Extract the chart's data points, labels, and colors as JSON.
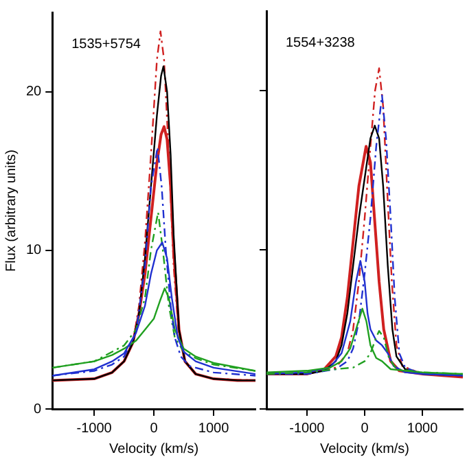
{
  "chart_data": [
    {
      "type": "line",
      "annotations": [
        "1535+5754"
      ],
      "xlabel": "Velocity (km/s)",
      "ylabel": "Flux (arbitrary units)",
      "xlim": [
        -1700,
        1700
      ],
      "xticks": [
        -1000,
        0,
        1000
      ],
      "ylim": [
        0,
        25
      ],
      "yticks": [
        0,
        10,
        20
      ],
      "grid": false,
      "legend": false,
      "marker": "none",
      "series": [
        {
          "color": "#2030d0",
          "line_style": "solid",
          "x": [
            -1700,
            -1000,
            -700,
            -500,
            -300,
            -150,
            -50,
            50,
            140,
            220,
            300,
            400,
            500,
            700,
            1000,
            1700
          ],
          "values": [
            2.1,
            2.5,
            3.0,
            3.5,
            4.8,
            6.5,
            8.5,
            10,
            10.5,
            9.5,
            7,
            4.5,
            3.6,
            3.0,
            2.6,
            2.2
          ]
        },
        {
          "color": "#2030d0",
          "line_style": "dashed",
          "x": [
            -1700,
            -1000,
            -700,
            -500,
            -300,
            -150,
            -50,
            60,
            130,
            200,
            280,
            350,
            450,
            600,
            1000,
            1700
          ],
          "values": [
            2.1,
            2.4,
            2.8,
            3.3,
            4.8,
            9,
            14,
            16.5,
            14,
            10,
            6.5,
            4.5,
            3.3,
            2.7,
            2.3,
            2.1
          ]
        },
        {
          "color": "#20a020",
          "line_style": "solid",
          "x": [
            -1700,
            -1000,
            -700,
            -500,
            -300,
            -150,
            0,
            100,
            180,
            250,
            350,
            500,
            700,
            1000,
            1700
          ],
          "values": [
            2.6,
            3.0,
            3.4,
            3.8,
            4.3,
            5,
            5.7,
            6.8,
            7.6,
            7,
            5,
            3.8,
            3.3,
            2.9,
            2.4
          ]
        },
        {
          "color": "#20a020",
          "line_style": "dashed",
          "x": [
            -1700,
            -1000,
            -700,
            -500,
            -300,
            -150,
            -50,
            70,
            150,
            250,
            350,
            500,
            700,
            1000,
            1700
          ],
          "values": [
            2.6,
            3.0,
            3.6,
            4.0,
            5,
            7,
            10,
            12.4,
            10,
            6.5,
            4.5,
            3.6,
            3.2,
            2.8,
            2.4
          ]
        },
        {
          "color": "#000000",
          "line_style": "solid",
          "x": [
            -1700,
            -1000,
            -700,
            -500,
            -350,
            -250,
            -150,
            -50,
            50,
            120,
            160,
            220,
            280,
            330,
            420,
            520,
            700,
            1000,
            1400,
            1700
          ],
          "values": [
            1.8,
            1.9,
            2.3,
            3.0,
            4.2,
            6,
            9.5,
            14,
            18.5,
            21,
            21.6,
            20,
            16,
            11,
            5,
            3,
            2.2,
            1.9,
            1.8,
            1.8
          ]
        },
        {
          "color": "#d02020",
          "line_style": "solid",
          "x": [
            -1700,
            -1000,
            -700,
            -500,
            -350,
            -250,
            -150,
            -50,
            50,
            120,
            170,
            220,
            280,
            330,
            420,
            520,
            700,
            1000,
            1400,
            1700
          ],
          "values": [
            1.8,
            1.9,
            2.3,
            3.0,
            4.2,
            6,
            8.5,
            12,
            15.5,
            17.3,
            17.8,
            17,
            14,
            10,
            5,
            3,
            2.2,
            1.9,
            1.8,
            1.8
          ]
        },
        {
          "color": "#d02020",
          "line_style": "dashed",
          "x": [
            -1700,
            -1000,
            -700,
            -500,
            -350,
            -250,
            -150,
            -50,
            50,
            110,
            170,
            250,
            330,
            420,
            520,
            700,
            1000,
            1700
          ],
          "values": [
            1.8,
            1.9,
            2.3,
            3.0,
            4.2,
            6.5,
            10.5,
            16,
            22,
            23.8,
            22,
            16,
            9,
            4.5,
            3,
            2.2,
            1.9,
            1.8
          ]
        }
      ]
    },
    {
      "type": "line",
      "annotations": [
        "1554+3238"
      ],
      "xlabel": "Velocity (km/s)",
      "xlim": [
        -1700,
        1700
      ],
      "xticks": [
        -1000,
        0,
        1000
      ],
      "ylim": [
        0,
        25
      ],
      "yticks": [
        0,
        10,
        20
      ],
      "tick_labels": "x",
      "grid": false,
      "legend": false,
      "marker": "none",
      "series": [
        {
          "color": "#20a020",
          "line_style": "solid",
          "x": [
            -1700,
            -1000,
            -600,
            -400,
            -250,
            -150,
            -40,
            30,
            100,
            200,
            300,
            450,
            700,
            1000,
            1700
          ],
          "values": [
            2.3,
            2.4,
            2.6,
            3.0,
            3.8,
            5,
            6.3,
            5.5,
            4,
            3.2,
            3,
            2.5,
            2.4,
            2.3,
            2.2
          ]
        },
        {
          "color": "#20a020",
          "line_style": "dashed",
          "x": [
            -1700,
            -1000,
            -500,
            -200,
            -100,
            0,
            100,
            200,
            250,
            330,
            420,
            550,
            1000,
            1700
          ],
          "values": [
            2.2,
            2.3,
            2.5,
            2.6,
            2.8,
            3.0,
            3.5,
            4.5,
            4.9,
            4.5,
            3.2,
            2.5,
            2.3,
            2.2
          ]
        },
        {
          "color": "#2030d0",
          "line_style": "solid",
          "x": [
            -1700,
            -1000,
            -600,
            -400,
            -250,
            -150,
            -75,
            0,
            50,
            100,
            200,
            300,
            400,
            500,
            700,
            1000,
            1700
          ],
          "values": [
            2.2,
            2.3,
            2.6,
            3.5,
            5.5,
            8,
            9.3,
            8,
            6,
            5,
            4.3,
            4,
            3.5,
            2.7,
            2.3,
            2.2,
            2.1
          ]
        },
        {
          "color": "#2030d0",
          "line_style": "dashed",
          "x": [
            -1700,
            -1000,
            -500,
            -300,
            -200,
            -100,
            0,
            100,
            200,
            300,
            370,
            450,
            520,
            600,
            700,
            1000,
            1700
          ],
          "values": [
            2.2,
            2.2,
            2.5,
            3.0,
            3.8,
            5.5,
            8.5,
            12,
            16.5,
            19.7,
            17,
            12,
            7,
            3.5,
            2.6,
            2.2,
            2.1
          ]
        },
        {
          "color": "#000000",
          "line_style": "solid",
          "x": [
            -1700,
            -1000,
            -700,
            -500,
            -400,
            -300,
            -200,
            -100,
            0,
            100,
            175,
            250,
            320,
            400,
            480,
            550,
            700,
            1000,
            1700
          ],
          "values": [
            2.2,
            2.2,
            2.4,
            3.0,
            4,
            6,
            9,
            12,
            14.5,
            17,
            17.8,
            17,
            14,
            9,
            5,
            3.3,
            2.5,
            2.2,
            2.1
          ]
        },
        {
          "color": "#d02020",
          "line_style": "solid",
          "x": [
            -1700,
            -1000,
            -700,
            -500,
            -400,
            -300,
            -200,
            -100,
            25,
            100,
            170,
            250,
            330,
            450,
            600,
            1000,
            1700
          ],
          "values": [
            2.2,
            2.2,
            2.5,
            3.3,
            4.5,
            7,
            10.5,
            14,
            16.5,
            15.5,
            12,
            8,
            5,
            3,
            2.4,
            2.2,
            2.0
          ]
        },
        {
          "color": "#d02020",
          "line_style": "dashed",
          "x": [
            -1700,
            -1000,
            -500,
            -300,
            -200,
            -100,
            0,
            100,
            180,
            250,
            320,
            400,
            470,
            550,
            650,
            1000,
            1700
          ],
          "values": [
            2.2,
            2.2,
            2.6,
            3.5,
            5,
            8,
            12,
            16.5,
            20,
            21.4,
            19,
            13,
            8,
            4,
            2.7,
            2.2,
            2.0
          ]
        }
      ]
    }
  ]
}
